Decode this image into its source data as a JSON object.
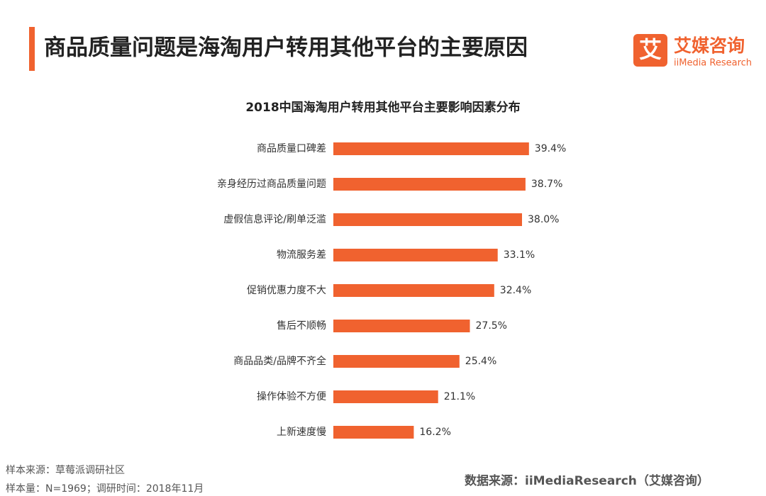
{
  "header": {
    "title": "商品质量问题是海淘用户转用其他平台的主要原因"
  },
  "logo": {
    "icon": "艾",
    "name": "艾媒咨询",
    "english": "iiMedia Research"
  },
  "chart_data": {
    "type": "hbar",
    "title": "2018中国海淘用户转用其他平台主要影响因素分布",
    "categories": [
      "商品质量口碑差",
      "亲身经历过商品质量问题",
      "虚假信息评论/刷单泛滥",
      "物流服务差",
      "促销优惠力度不大",
      "售后不顺畅",
      "商品品类/品牌不齐全",
      "操作体验不方便",
      "上新速度慢"
    ],
    "values": [
      39.4,
      38.7,
      38.0,
      33.1,
      32.4,
      27.5,
      25.4,
      21.1,
      16.2
    ],
    "value_labels": [
      "39.4%",
      "38.7%",
      "38.0%",
      "33.1%",
      "32.4%",
      "27.5%",
      "25.4%",
      "21.1%",
      "16.2%"
    ],
    "color": "#f0622f",
    "xlim": [
      0,
      40
    ]
  },
  "footer": {
    "sample_source": "样本来源：草莓派调研社区",
    "sample_info": "样本量：N=1969；调研时间：2018年11月",
    "data_source": "数据来源：iiMediaResearch（艾媒咨询）"
  }
}
